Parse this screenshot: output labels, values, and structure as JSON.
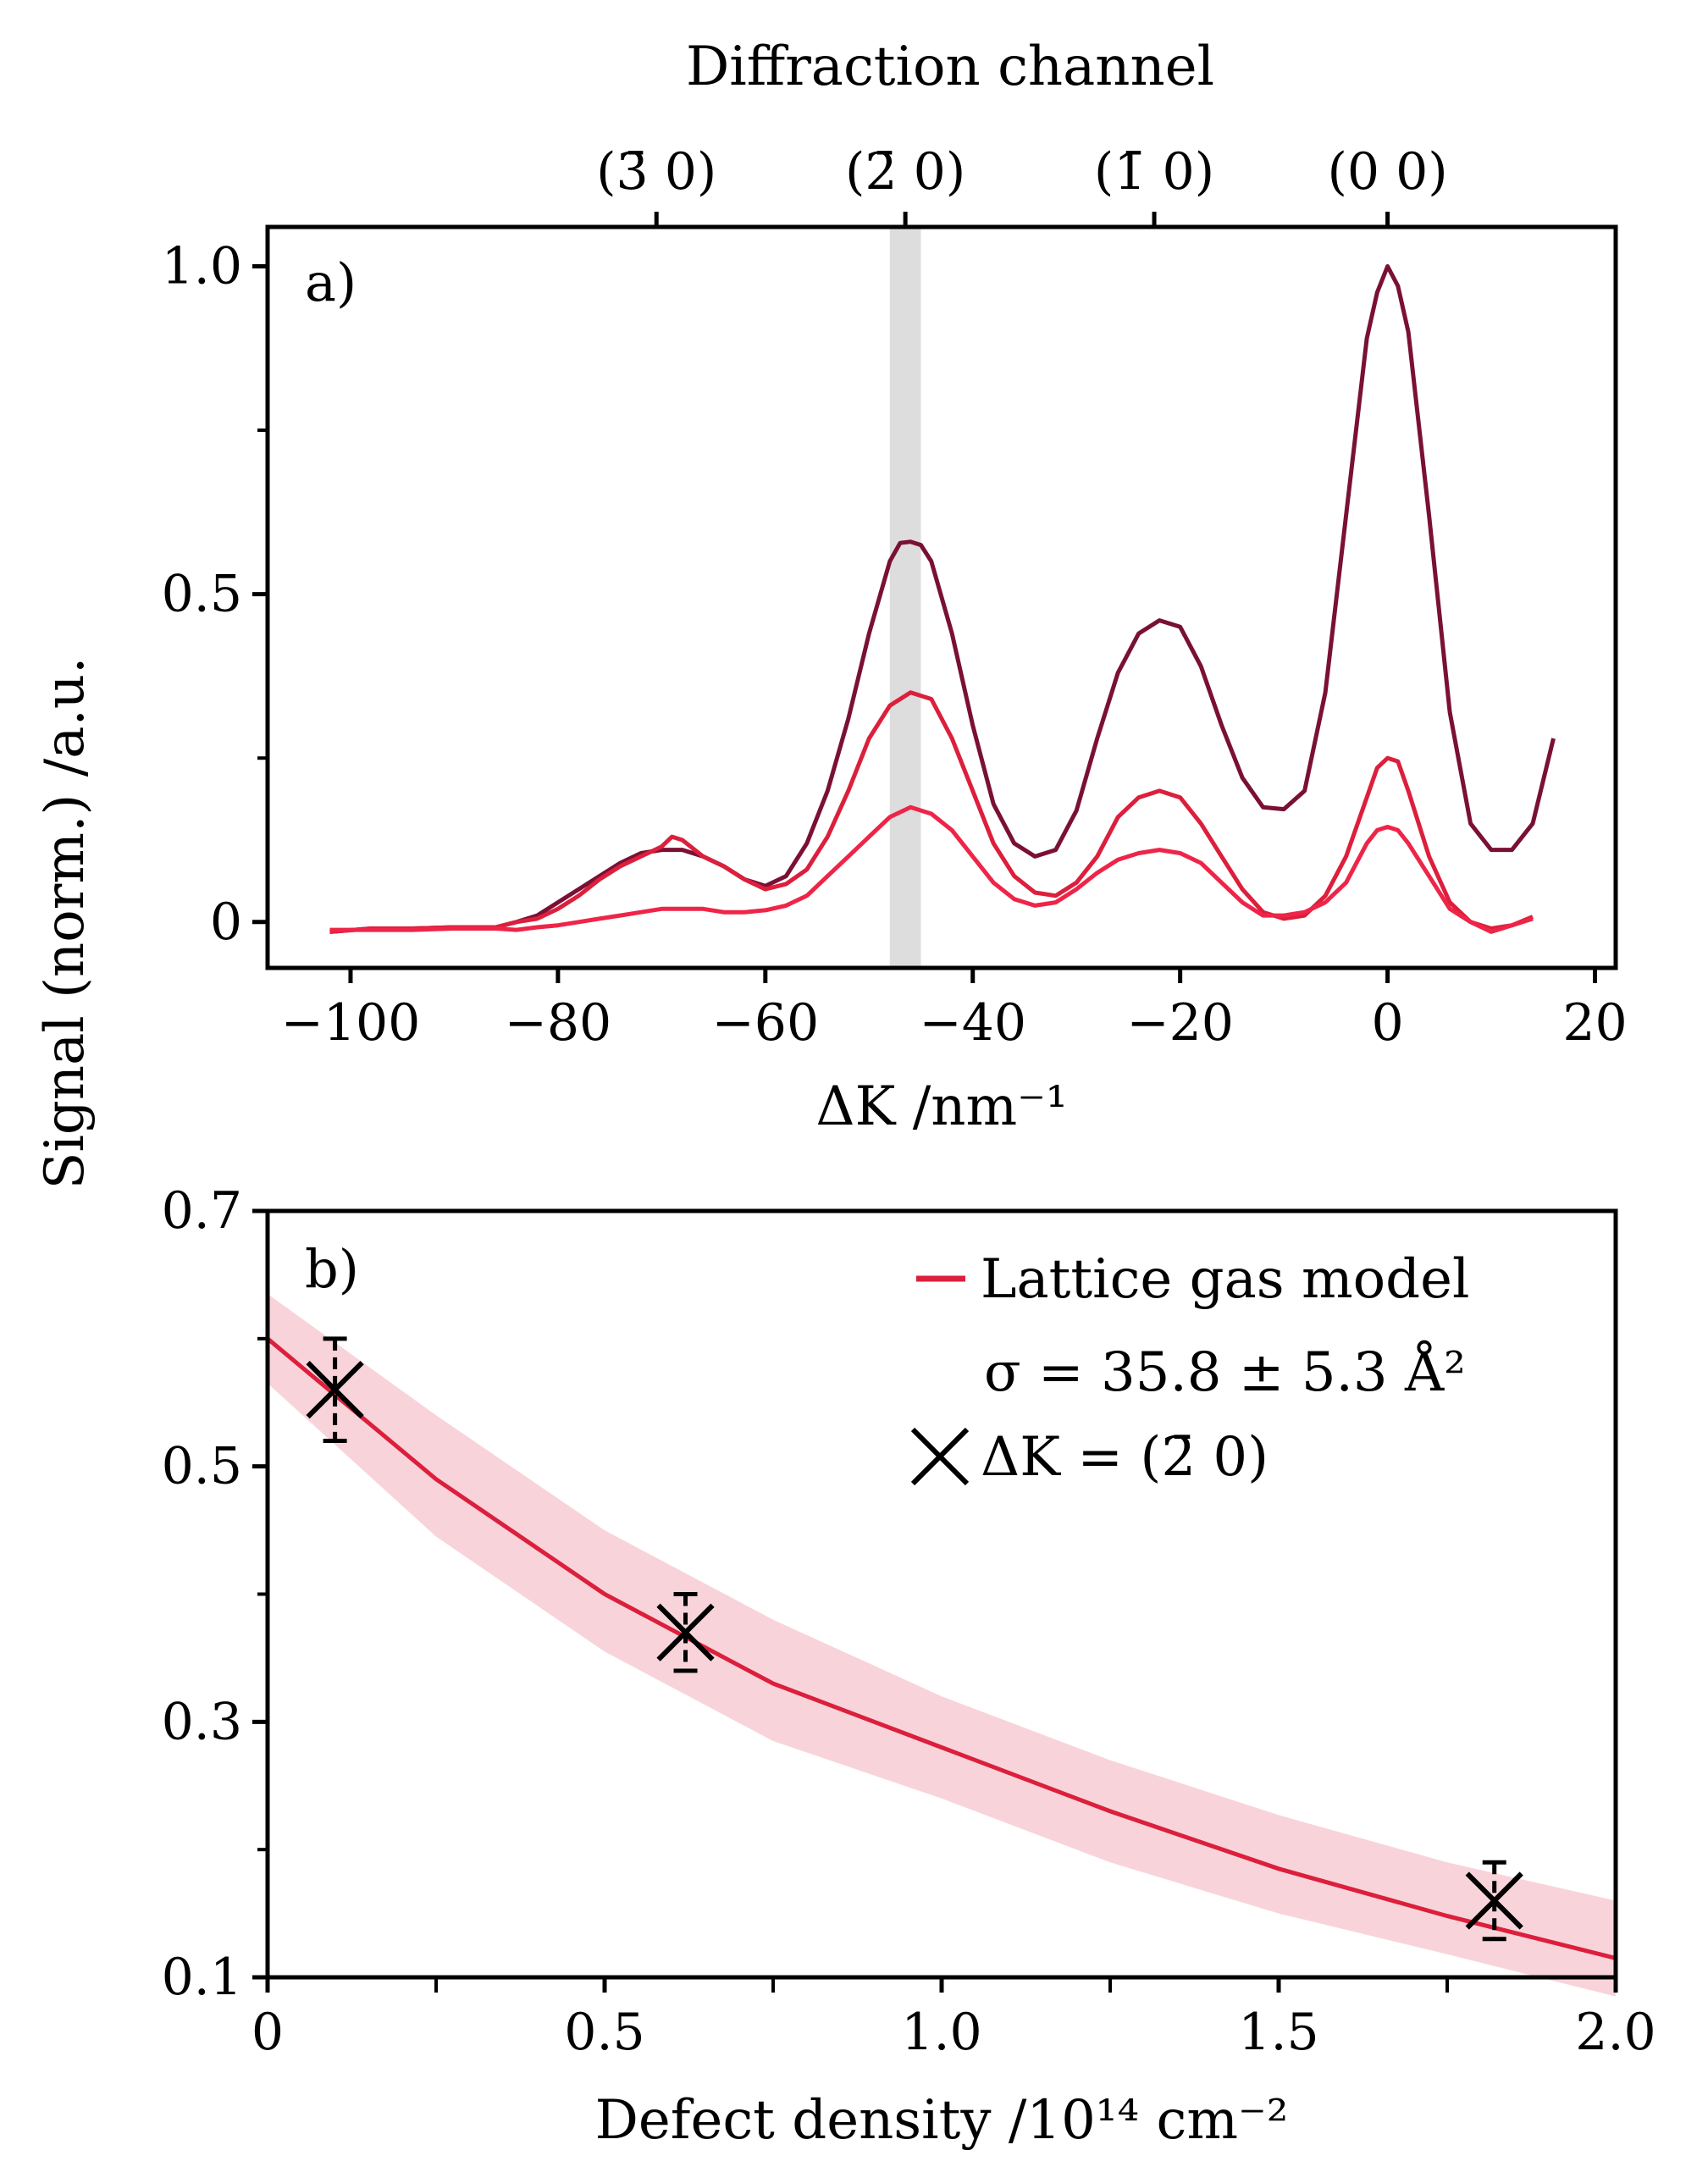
{
  "figure": {
    "ylabel": "Signal (norm.) /a.u.",
    "colors": {
      "dark": "#7a1035",
      "mid": "#dc1f3c",
      "light": "#ee2548",
      "band": "#f8d4da",
      "highlight": "#dddddd"
    }
  },
  "chart_data": [
    {
      "panel": "a)",
      "type": "line",
      "xlabel": "ΔK /nm⁻¹",
      "top_axis_label": "Diffraction channel",
      "top_ticks": [
        {
          "label": "(3̄ 0)",
          "x": -70.5
        },
        {
          "label": "(2̄ 0)",
          "x": -46.5
        },
        {
          "label": "(1̄ 0)",
          "x": -22.5
        },
        {
          "label": "(0 0)",
          "x": 0
        }
      ],
      "xlim": [
        -108,
        22
      ],
      "ylim": [
        -0.07,
        1.06
      ],
      "xticks": [
        -100,
        -80,
        -60,
        -40,
        -20,
        0,
        20
      ],
      "xtick_labels": [
        "−100",
        "−80",
        "−60",
        "−40",
        "−20",
        "0",
        "20"
      ],
      "yticks": [
        0,
        0.5,
        1.0
      ],
      "ytick_labels": [
        "0",
        "0.5",
        "1.0"
      ],
      "y_minor_ticks": [
        0.25,
        0.75
      ],
      "highlight_band": [
        -48,
        -45
      ],
      "series": [
        {
          "color": "dark",
          "x": [
            -102,
            -98,
            -94,
            -90,
            -86,
            -84,
            -82,
            -80,
            -78,
            -76,
            -74,
            -72,
            -70,
            -68,
            -66,
            -64,
            -62,
            -60,
            -58,
            -56,
            -54,
            -52,
            -50,
            -48,
            -47,
            -46,
            -45,
            -44,
            -42,
            -40,
            -38,
            -36,
            -34,
            -32,
            -30,
            -28,
            -26,
            -24,
            -22,
            -20,
            -18,
            -16,
            -14,
            -12,
            -10,
            -8,
            -6,
            -4,
            -2,
            -1,
            0,
            1,
            2,
            4,
            6,
            8,
            10,
            12,
            14,
            16
          ],
          "y": [
            -0.015,
            -0.01,
            -0.01,
            -0.008,
            -0.008,
            0.0,
            0.01,
            0.03,
            0.05,
            0.07,
            0.09,
            0.105,
            0.11,
            0.11,
            0.1,
            0.085,
            0.065,
            0.055,
            0.07,
            0.12,
            0.2,
            0.31,
            0.44,
            0.55,
            0.578,
            0.58,
            0.575,
            0.55,
            0.44,
            0.3,
            0.18,
            0.12,
            0.1,
            0.11,
            0.17,
            0.28,
            0.38,
            0.44,
            0.46,
            0.45,
            0.39,
            0.3,
            0.22,
            0.175,
            0.172,
            0.2,
            0.35,
            0.62,
            0.89,
            0.96,
            1.0,
            0.97,
            0.9,
            0.62,
            0.32,
            0.15,
            0.11,
            0.11,
            0.15,
            0.28
          ]
        },
        {
          "color": "mid",
          "x": [
            -102,
            -98,
            -94,
            -90,
            -86,
            -84,
            -82,
            -80,
            -78,
            -76,
            -74,
            -72,
            -70,
            -69,
            -68,
            -66,
            -64,
            -62,
            -60,
            -58,
            -56,
            -54,
            -52,
            -50,
            -48,
            -46,
            -44,
            -42,
            -40,
            -38,
            -36,
            -34,
            -32,
            -30,
            -28,
            -26,
            -24,
            -22,
            -20,
            -18,
            -16,
            -14,
            -12,
            -10,
            -8,
            -6,
            -4,
            -2,
            -1,
            0,
            1,
            2,
            4,
            6,
            8,
            10,
            12,
            14
          ],
          "y": [
            -0.015,
            -0.01,
            -0.01,
            -0.008,
            -0.008,
            0.0,
            0.005,
            0.02,
            0.04,
            0.065,
            0.085,
            0.1,
            0.115,
            0.13,
            0.125,
            0.1,
            0.085,
            0.065,
            0.05,
            0.058,
            0.08,
            0.13,
            0.2,
            0.28,
            0.33,
            0.35,
            0.34,
            0.28,
            0.2,
            0.12,
            0.07,
            0.045,
            0.04,
            0.06,
            0.1,
            0.16,
            0.19,
            0.2,
            0.19,
            0.15,
            0.1,
            0.05,
            0.015,
            0.005,
            0.01,
            0.04,
            0.1,
            0.19,
            0.235,
            0.25,
            0.245,
            0.2,
            0.1,
            0.03,
            0.0,
            -0.01,
            -0.005,
            0.008
          ]
        },
        {
          "color": "light",
          "x": [
            -102,
            -98,
            -94,
            -90,
            -86,
            -84,
            -82,
            -80,
            -78,
            -76,
            -74,
            -72,
            -70,
            -68,
            -66,
            -64,
            -62,
            -60,
            -58,
            -56,
            -54,
            -52,
            -50,
            -48,
            -46,
            -44,
            -42,
            -40,
            -38,
            -36,
            -34,
            -32,
            -30,
            -28,
            -26,
            -24,
            -22,
            -20,
            -18,
            -16,
            -14,
            -12,
            -10,
            -8,
            -6,
            -4,
            -2,
            -1,
            0,
            1,
            2,
            4,
            6,
            8,
            10,
            12,
            14
          ],
          "y": [
            -0.012,
            -0.012,
            -0.012,
            -0.01,
            -0.01,
            -0.012,
            -0.008,
            -0.005,
            0.0,
            0.005,
            0.01,
            0.015,
            0.02,
            0.02,
            0.02,
            0.015,
            0.015,
            0.018,
            0.025,
            0.04,
            0.07,
            0.1,
            0.13,
            0.16,
            0.175,
            0.165,
            0.14,
            0.1,
            0.06,
            0.035,
            0.025,
            0.03,
            0.05,
            0.075,
            0.095,
            0.105,
            0.11,
            0.105,
            0.09,
            0.06,
            0.03,
            0.01,
            0.01,
            0.015,
            0.03,
            0.06,
            0.12,
            0.14,
            0.145,
            0.14,
            0.12,
            0.07,
            0.02,
            0.0,
            -0.015,
            -0.005,
            0.005
          ]
        }
      ]
    },
    {
      "panel": "b)",
      "type": "line",
      "xlabel": "Defect density /10¹⁴ cm⁻²",
      "xlim": [
        0,
        2.0
      ],
      "ylim": [
        0.1,
        0.7
      ],
      "xticks": [
        0,
        0.5,
        1.0,
        1.5,
        2.0
      ],
      "xtick_labels": [
        "0",
        "0.5",
        "1.0",
        "1.5",
        "2.0"
      ],
      "x_minor_ticks": [
        0.25,
        0.75,
        1.25,
        1.75
      ],
      "yticks": [
        0.1,
        0.3,
        0.5,
        0.7
      ],
      "ytick_labels": [
        "0.1",
        "0.3",
        "0.5",
        "0.7"
      ],
      "y_minor_ticks": [
        0.2,
        0.4,
        0.6
      ],
      "model": {
        "name": "Lattice gas model",
        "annotation": "σ = 35.8 ± 5.3 Å²",
        "x": [
          0,
          0.25,
          0.5,
          0.75,
          1.0,
          1.25,
          1.5,
          1.75,
          2.0
        ],
        "y": [
          0.6,
          0.49,
          0.4,
          0.33,
          0.28,
          0.23,
          0.185,
          0.148,
          0.115
        ],
        "band_upper": [
          0.635,
          0.54,
          0.45,
          0.38,
          0.32,
          0.27,
          0.227,
          0.19,
          0.16
        ],
        "band_lower": [
          0.565,
          0.445,
          0.355,
          0.285,
          0.24,
          0.19,
          0.15,
          0.118,
          0.085
        ]
      },
      "measurements": {
        "name": "ΔK = (2̄ 0)",
        "x": [
          0.1,
          0.62,
          1.82
        ],
        "y": [
          0.56,
          0.37,
          0.16
        ],
        "yerr": [
          0.04,
          0.03,
          0.03
        ]
      }
    }
  ]
}
